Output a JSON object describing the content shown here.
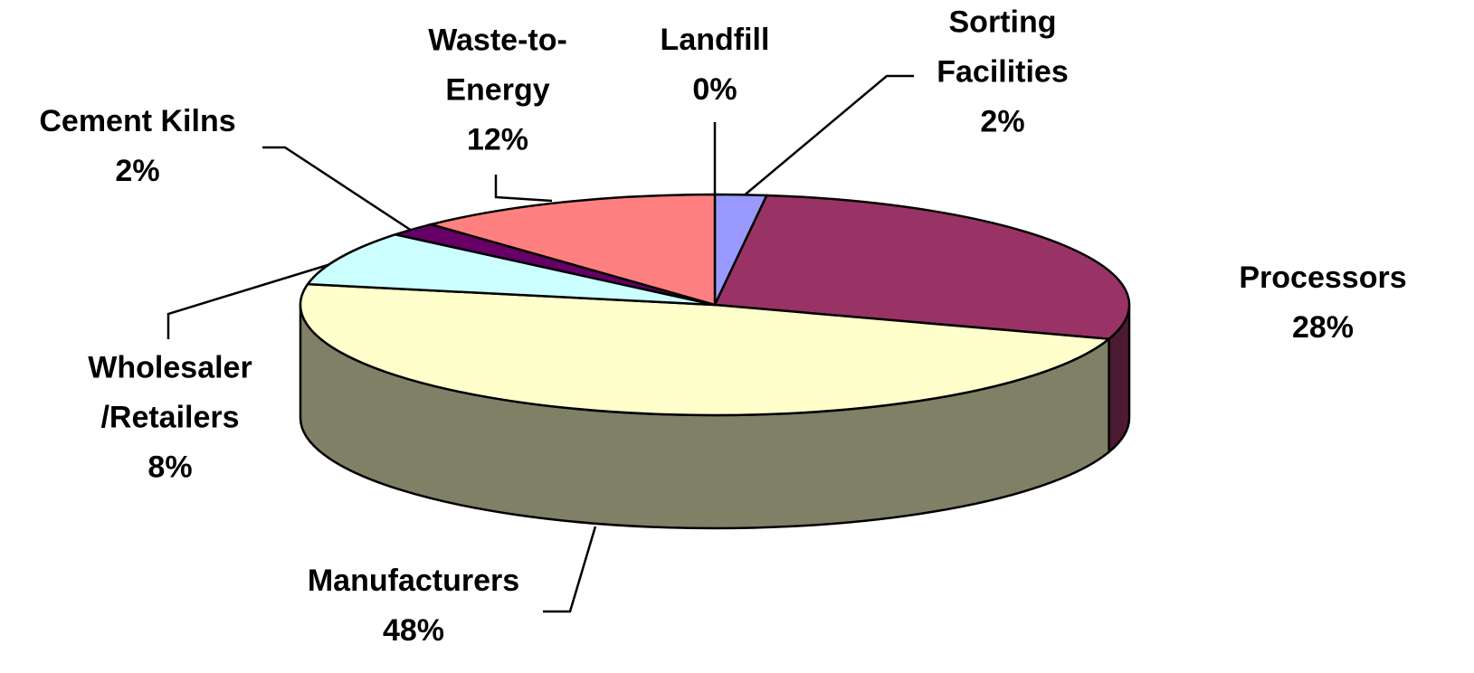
{
  "chart_data": {
    "type": "pie3d",
    "categories": [
      "Landfill",
      "Sorting\nFacilities",
      "Processors",
      "Manufacturers",
      "Wholesaler\n/Retailers",
      "Cement Kilns",
      "Waste-to-\nEnergy"
    ],
    "values": [
      0,
      2,
      28,
      48,
      8,
      2,
      12
    ],
    "value_labels": [
      "0%",
      "2%",
      "28%",
      "48%",
      "8%",
      "2%",
      "12%"
    ],
    "colors": [
      "#333399",
      "#9999ff",
      "#993366",
      "#ffffcc",
      "#ccffff",
      "#660066",
      "#ff8080"
    ],
    "side_colors": [
      "#1a1a4d",
      "#4d4d80",
      "#4d1a33",
      "#808066",
      "#668080",
      "#330033",
      "#804040"
    ]
  }
}
